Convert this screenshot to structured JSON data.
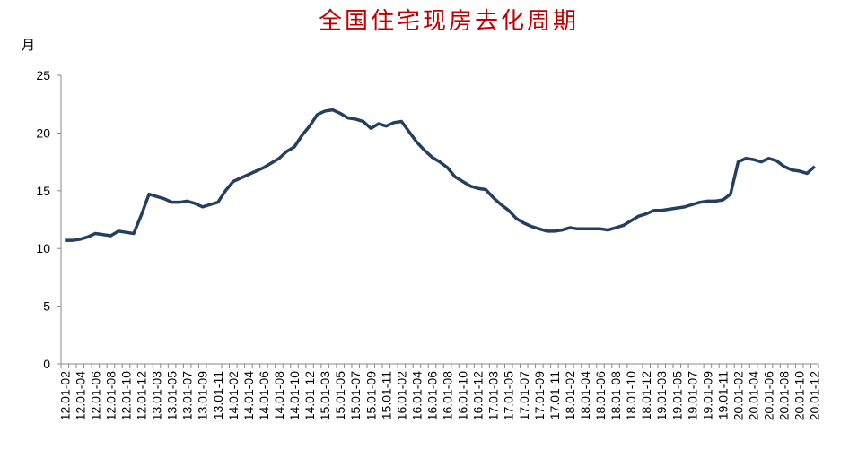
{
  "chart_data": {
    "type": "line",
    "title": "全国住宅现房去化周期",
    "y_label": "月",
    "categories": [
      "12.01-02",
      null,
      "12.01-04",
      null,
      "12.01-06",
      null,
      "12.01-08",
      null,
      "12.01-10",
      null,
      "12.01-12",
      null,
      "13.01-03",
      null,
      "13.01-05",
      null,
      "13.01-07",
      null,
      "13.01-09",
      null,
      "13.01-11",
      null,
      "14.01-02",
      null,
      "14.01-04",
      null,
      "14.01-06",
      null,
      "14.01-08",
      null,
      "14.01-10",
      null,
      "14.01-12",
      null,
      "15.01-03",
      null,
      "15.01-05",
      null,
      "15.01-07",
      null,
      "15.01-09",
      null,
      "15.01-11",
      null,
      "16.01-02",
      null,
      "16.01-04",
      null,
      "16.01-06",
      null,
      "16.01-08",
      null,
      "16.01-10",
      null,
      "16.01-12",
      null,
      "17.01-03",
      null,
      "17.01-05",
      null,
      "17.01-07",
      null,
      "17.01-09",
      null,
      "17.01-11",
      null,
      "18.01-02",
      null,
      "18.01-04",
      null,
      "18.01-06",
      null,
      "18.01-08",
      null,
      "18.01-10",
      null,
      "18.01-12",
      null,
      "19.01-03",
      null,
      "19.01-05",
      null,
      "19.01-07",
      null,
      "19.01-09",
      null,
      "19.01-11",
      null,
      "20.01-02",
      null,
      "20.01-04",
      null,
      "20.01-06",
      null,
      "20.01-08",
      null,
      "20.01-10",
      null,
      "20.01-12"
    ],
    "series": [
      {
        "color": "#243f60",
        "values": [
          10.7,
          10.7,
          10.8,
          11.0,
          11.3,
          11.2,
          11.1,
          11.5,
          11.4,
          11.3,
          12.9,
          14.7,
          14.5,
          14.3,
          14.0,
          14.0,
          14.1,
          13.9,
          13.6,
          13.8,
          14.0,
          15.0,
          15.8,
          16.1,
          16.4,
          16.7,
          17.0,
          17.4,
          17.8,
          18.4,
          18.8,
          19.8,
          20.6,
          21.6,
          21.9,
          22.0,
          21.7,
          21.3,
          21.2,
          21.0,
          20.4,
          20.8,
          20.6,
          20.9,
          21.0,
          20.1,
          19.2,
          18.5,
          17.9,
          17.5,
          17.0,
          16.2,
          15.8,
          15.4,
          15.2,
          15.1,
          14.4,
          13.8,
          13.3,
          12.6,
          12.2,
          11.9,
          11.7,
          11.5,
          11.5,
          11.6,
          11.8,
          11.7,
          11.7,
          11.7,
          11.7,
          11.6,
          11.8,
          12.0,
          12.4,
          12.8,
          13.0,
          13.3,
          13.3,
          13.4,
          13.5,
          13.6,
          13.8,
          14.0,
          14.1,
          14.1,
          14.2,
          14.7,
          17.5,
          17.8,
          17.7,
          17.5,
          17.8,
          17.6,
          17.1,
          16.8,
          16.7,
          16.5,
          17.1
        ]
      }
    ],
    "ylim": [
      0,
      25
    ],
    "yticks": [
      0,
      5,
      10,
      15,
      20,
      25
    ],
    "grid": false
  }
}
